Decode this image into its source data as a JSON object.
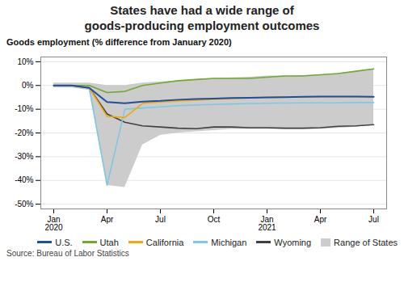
{
  "chart_data": {
    "type": "line",
    "title": "States have had a wide range of\ngoods-producing employment outcomes",
    "subtitle": "Goods employment (% difference from January 2020)",
    "source": "Source: Bureau of Labor Statistics",
    "categories": [
      "Jan\n2020",
      null,
      null,
      "Apr",
      null,
      null,
      "Jul",
      null,
      null,
      "Oct",
      null,
      null,
      "Jan\n2021",
      null,
      null,
      "Apr",
      null,
      null,
      "Jul"
    ],
    "series": [
      {
        "name": "U.S.",
        "color": "#1F4E9B",
        "values": [
          0.0,
          0.0,
          -0.01,
          -0.07,
          -0.075,
          -0.068,
          -0.065,
          -0.06,
          -0.057,
          -0.055,
          -0.053,
          -0.052,
          -0.05,
          -0.049,
          -0.048,
          -0.047,
          -0.047,
          -0.047,
          -0.048
        ]
      },
      {
        "name": "Utah",
        "color": "#70A832",
        "values": [
          0.0,
          0.0,
          0.0,
          -0.03,
          -0.025,
          0.0,
          0.01,
          0.02,
          0.025,
          0.03,
          0.03,
          0.03,
          0.035,
          0.04,
          0.04,
          0.045,
          0.05,
          0.06,
          0.07
        ]
      },
      {
        "name": "California",
        "color": "#F5A800",
        "values": [
          0.0,
          0.0,
          -0.01,
          -0.13,
          -0.135,
          -0.075,
          -0.07,
          -0.065,
          -0.062,
          -0.058,
          -0.055,
          -0.053,
          -0.05,
          -0.049,
          -0.048,
          -0.047,
          -0.047,
          -0.047,
          -0.048
        ]
      },
      {
        "name": "Michigan",
        "color": "#7EC8E3",
        "values": [
          0.0,
          0.0,
          -0.01,
          -0.42,
          -0.1,
          -0.095,
          -0.09,
          -0.085,
          -0.082,
          -0.08,
          -0.078,
          -0.076,
          -0.075,
          -0.074,
          -0.073,
          -0.073,
          -0.073,
          -0.072,
          -0.072
        ]
      },
      {
        "name": "Wyoming",
        "color": "#404040",
        "values": [
          0.0,
          0.0,
          -0.01,
          -0.12,
          -0.155,
          -0.17,
          -0.175,
          -0.18,
          -0.182,
          -0.175,
          -0.175,
          -0.178,
          -0.178,
          -0.18,
          -0.18,
          -0.178,
          -0.172,
          -0.17,
          -0.165
        ]
      },
      {
        "name": "Range of States",
        "type": "area",
        "color": "#CCCCCC",
        "upper": [
          0.01,
          0.01,
          0.01,
          0.0,
          0.0,
          0.01,
          0.015,
          0.02,
          0.025,
          0.03,
          0.032,
          0.035,
          0.04,
          0.04,
          0.042,
          0.045,
          0.05,
          0.06,
          0.07
        ],
        "lower": [
          -0.01,
          -0.01,
          -0.02,
          -0.42,
          -0.43,
          -0.25,
          -0.21,
          -0.2,
          -0.195,
          -0.19,
          -0.185,
          -0.185,
          -0.185,
          -0.185,
          -0.185,
          -0.185,
          -0.18,
          -0.175,
          -0.165
        ]
      }
    ],
    "ylim": [
      -0.52,
      0.12
    ],
    "yticks": [
      {
        "value": 0.1,
        "label": "10%"
      },
      {
        "value": 0.0,
        "label": "0%"
      },
      {
        "value": -0.1,
        "label": "-10%"
      },
      {
        "value": -0.2,
        "label": "-20%"
      },
      {
        "value": -0.3,
        "label": "-30%"
      },
      {
        "value": -0.4,
        "label": "-40%"
      },
      {
        "value": -0.5,
        "label": "-50%"
      }
    ],
    "grid": true,
    "legend": "lower right"
  }
}
